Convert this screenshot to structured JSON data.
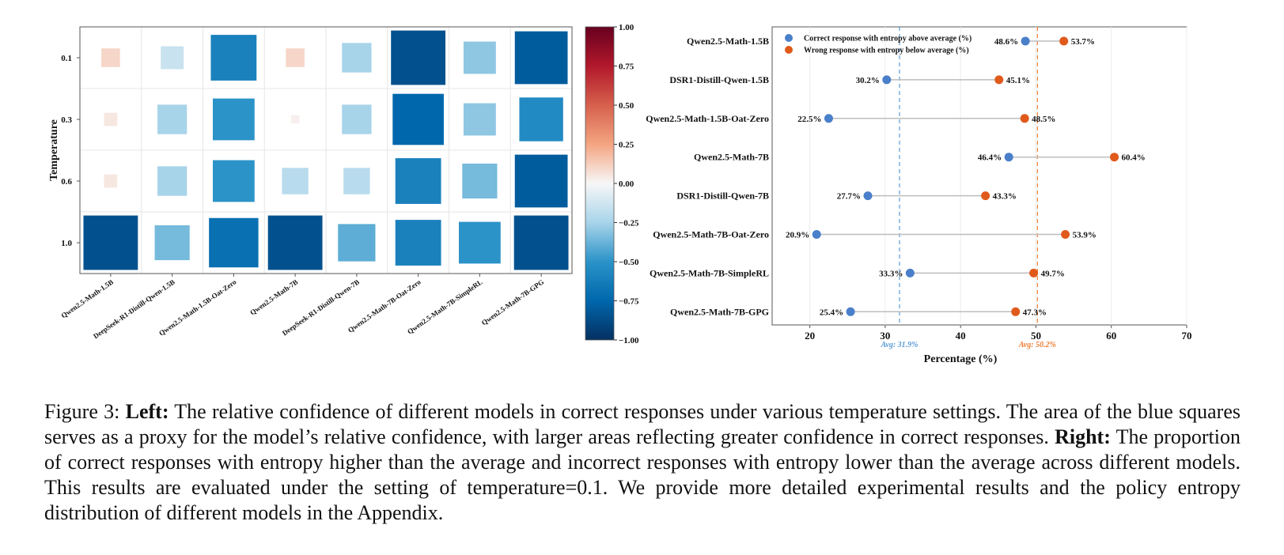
{
  "chart_data": [
    {
      "type": "heatmap",
      "ylabel": "Temperature",
      "xlabel": "",
      "rows": [
        "0.1",
        "0.3",
        "0.6",
        "1.0"
      ],
      "columns": [
        "Qwen2.5-Math-1.5B",
        "DeepSeek-R1-Distill-Qwen-1.5B",
        "Qwen2.5-Math-1.5B-Oat-Zero",
        "Qwen2.5-Math-7B",
        "DeepSeek-R1-Distill-Qwen-7B",
        "Qwen2.5-Math-7B-Oat-Zero",
        "Qwen2.5-Math-7B-SimpleRL",
        "Qwen2.5-Math-7B-GPG"
      ],
      "values": [
        [
          0.1,
          -0.15,
          -0.6,
          0.1,
          -0.25,
          -0.85,
          -0.3,
          -0.8
        ],
        [
          0.05,
          -0.25,
          -0.5,
          0.02,
          -0.25,
          -0.75,
          -0.3,
          -0.55
        ],
        [
          0.05,
          -0.25,
          -0.5,
          -0.2,
          -0.2,
          -0.6,
          -0.35,
          -0.8
        ],
        [
          -0.85,
          -0.35,
          -0.7,
          -0.85,
          -0.4,
          -0.6,
          -0.5,
          -0.85
        ]
      ],
      "colorbar": {
        "range": [
          -1.0,
          1.0
        ],
        "ticks": [
          "1.00",
          "0.75",
          "0.50",
          "0.25",
          "0.00",
          "−0.25",
          "−0.50",
          "−0.75",
          "−1.00"
        ]
      }
    },
    {
      "type": "scatter",
      "subtype": "dumbbell",
      "xlabel": "Percentage (%)",
      "ylabel": "",
      "xlim": [
        15,
        70
      ],
      "xticks": [
        "20",
        "30",
        "40",
        "50",
        "60",
        "70"
      ],
      "grid": true,
      "legend_position": "top-left",
      "categories": [
        "Qwen2.5-Math-1.5B",
        "DSR1-Distill-Qwen-1.5B",
        "Qwen2.5-Math-1.5B-Oat-Zero",
        "Qwen2.5-Math-7B",
        "DSR1-Distill-Qwen-7B",
        "Qwen2.5-Math-7B-Oat-Zero",
        "Qwen2.5-Math-7B-SimpleRL",
        "Qwen2.5-Math-7B-GPG"
      ],
      "series": [
        {
          "name": "Correct response with entropy above average (%)",
          "color": "#4a7fca",
          "values": [
            48.6,
            30.2,
            22.5,
            46.4,
            27.7,
            20.9,
            33.3,
            25.4
          ],
          "labels": [
            "48.6%",
            "30.2%",
            "22.5%",
            "46.4%",
            "27.7%",
            "20.9%",
            "33.3%",
            "25.4%"
          ]
        },
        {
          "name": "Wrong response with entropy below average (%)",
          "color": "#e05a1b",
          "values": [
            53.7,
            45.1,
            48.5,
            60.4,
            43.3,
            53.9,
            49.7,
            47.3
          ],
          "labels": [
            "53.7%",
            "45.1%",
            "48.5%",
            "60.4%",
            "43.3%",
            "53.9%",
            "49.7%",
            "47.3%"
          ]
        }
      ],
      "reference_lines": [
        {
          "value": 31.9,
          "label": "Avg: 31.9%",
          "color": "#5b9bd5"
        },
        {
          "value": 50.2,
          "label": "Avg: 50.2%",
          "color": "#ed7d31"
        }
      ]
    }
  ],
  "caption": {
    "prefix": "Figure 3: ",
    "left_label": "Left:",
    "left_text": " The relative confidence of different models in correct responses under various temperature settings. The area of the blue squares serves as a proxy for the model’s relative confidence, with larger areas reflecting greater confidence in correct responses. ",
    "right_label": "Right:",
    "right_text": " The proportion of correct responses with entropy higher than the average and incorrect responses with entropy lower than the average across different models. This results are evaluated under the setting of temperature=0.1. We provide more detailed experimental results and the policy entropy distribution of different models in the Appendix."
  }
}
